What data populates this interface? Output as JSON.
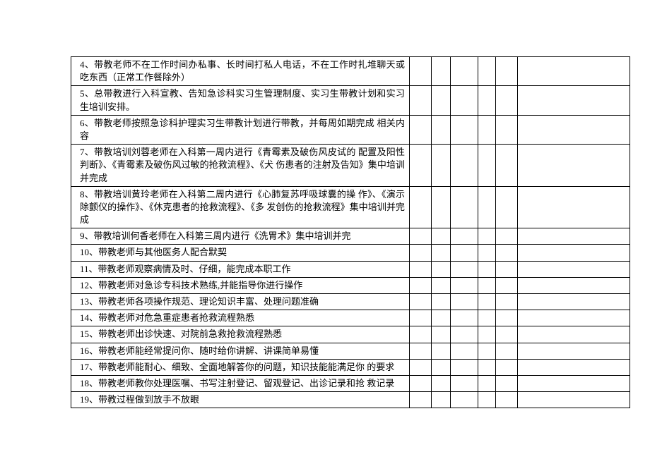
{
  "rows": [
    "4、带教老师不在工作时间办私事、长时间打私人电话，不在工作时扎堆聊天或吃东西（正常工作餐除外）",
    "5、总带教进行入科宣教、告知急诊科实习生管理制度、实习生带教计划和实习生培训安排。",
    "6、带教老师按照急诊科护理实习生带教计划进行带教，并每周如期完成 相关内容",
    "7、带教培训刘蓉老师在入科第一周内进行《青霉素及破伤风皮试的 配置及阳性判断》、《青霉素及破伤风过敏的抢救流程》、《犬 伤患者的注射及告知》集中培训并完成",
    "8、带教培训黄玲老师在入科第二周内进行《心肺复苏呼吸球囊的操 作》、《演示除颤仪的操作》、《休克患者的抢救流程》、《多 发创伤的抢救流程》集中培训并完成",
    "9、带教培训何香老师在入科第三周内进行《洗胃术》集中培训并完",
    "10、带教老师与其他医务人配合默契",
    "11、带教老师观察病情及时、仔细，能完成本职工作",
    "12、带教老师对急诊专科技术熟练,并能指导你进行操作",
    "13、带教老师各项操作规范、理论知识丰富、处理问题准确",
    "14、带教老师对危急重症患者抢救流程熟悉",
    "15、带教老师出诊快速、对院前急救抢救流程熟悉",
    "16、带教老师能经常提问你、随时给你讲解、讲课简单易懂",
    "17、带教老师能耐心、细致、全面地解答你的问题，知识技能能满足你 的要求",
    "18、带教老师教你处理医嘱、书写注射登记、留观登记、出诊记录和抢 救记录",
    "19、带教过程做到放手不放眼"
  ]
}
